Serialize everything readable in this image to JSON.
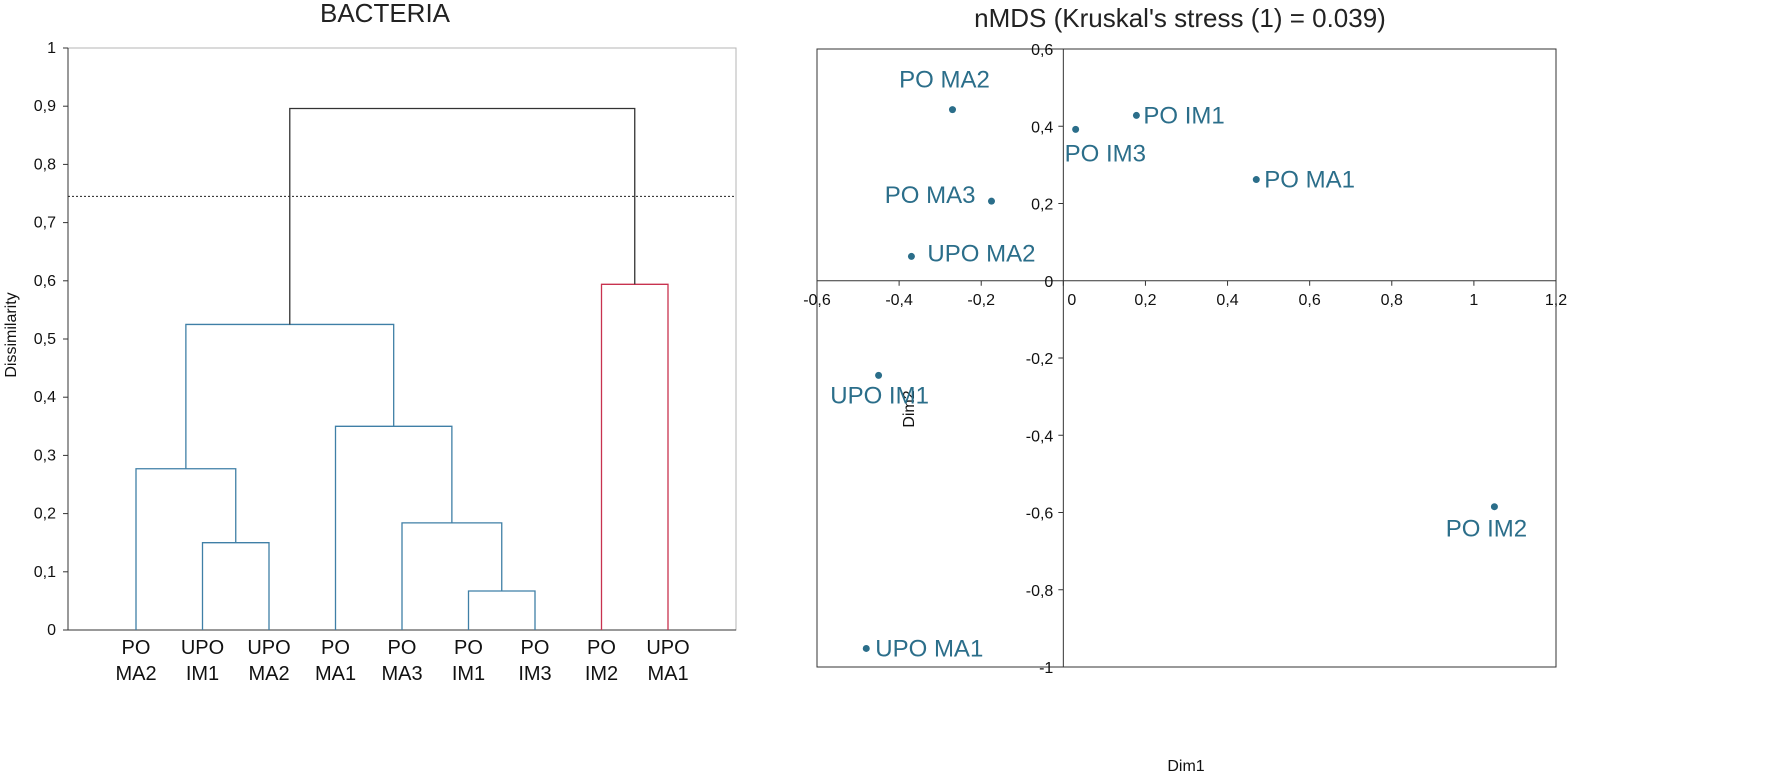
{
  "chart_data": [
    {
      "type": "dendrogram",
      "title": "BACTERIA",
      "ylabel": "Dissimilarity",
      "ylim": [
        0,
        1
      ],
      "yticks": [
        "0",
        "0,1",
        "0,2",
        "0,3",
        "0,4",
        "0,5",
        "0,6",
        "0,7",
        "0,8",
        "0,9",
        "1"
      ],
      "cut_line": 0.745,
      "leaves": [
        {
          "line1": "PO",
          "line2": "MA2"
        },
        {
          "line1": "UPO",
          "line2": "IM1"
        },
        {
          "line1": "UPO",
          "line2": "MA2"
        },
        {
          "line1": "PO",
          "line2": "MA1"
        },
        {
          "line1": "PO",
          "line2": "MA3"
        },
        {
          "line1": "PO",
          "line2": "IM1"
        },
        {
          "line1": "PO",
          "line2": "IM3"
        },
        {
          "line1": "PO",
          "line2": "IM2"
        },
        {
          "line1": "UPO",
          "line2": "MA1"
        }
      ],
      "merges": [
        {
          "left": 5,
          "right": 6,
          "height": 0.067,
          "color": "#3f7fa6"
        },
        {
          "left": 1,
          "right": 2,
          "height": 0.15,
          "color": "#3f7fa6"
        },
        {
          "left": 4,
          "right": "m0",
          "height": 0.184,
          "color": "#3f7fa6"
        },
        {
          "left": 0,
          "right": "m1",
          "height": 0.277,
          "color": "#3f7fa6"
        },
        {
          "left": 3,
          "right": "m2",
          "height": 0.35,
          "color": "#3f7fa6"
        },
        {
          "left": "m3",
          "right": "m4",
          "height": 0.525,
          "color": "#3f7fa6"
        },
        {
          "left": 7,
          "right": 8,
          "height": 0.594,
          "color": "#c8324f"
        },
        {
          "left": "m5",
          "right": "m6",
          "height": 0.896,
          "color": "#333333"
        }
      ]
    },
    {
      "type": "scatter",
      "title": "nMDS (Kruskal's stress (1) = 0.039)",
      "xlabel": "Dim1",
      "ylabel": "Dim2",
      "xlim": [
        -0.6,
        1.2
      ],
      "ylim": [
        -1,
        0.6
      ],
      "xticks": [
        {
          "v": -0.6,
          "t": "-0,6"
        },
        {
          "v": -0.4,
          "t": "-0,4"
        },
        {
          "v": -0.2,
          "t": "-0,2"
        },
        {
          "v": 0,
          "t": "0"
        },
        {
          "v": 0.2,
          "t": "0,2"
        },
        {
          "v": 0.4,
          "t": "0,4"
        },
        {
          "v": 0.6,
          "t": "0,6"
        },
        {
          "v": 0.8,
          "t": "0,8"
        },
        {
          "v": 1,
          "t": "1"
        },
        {
          "v": 1.2,
          "t": "1,2"
        }
      ],
      "yticks": [
        {
          "v": -1,
          "t": "-1"
        },
        {
          "v": -0.8,
          "t": "-0,8"
        },
        {
          "v": -0.6,
          "t": "-0,6"
        },
        {
          "v": -0.4,
          "t": "-0,4"
        },
        {
          "v": -0.2,
          "t": "-0,2"
        },
        {
          "v": 0,
          "t": "0"
        },
        {
          "v": 0.2,
          "t": "0,2"
        },
        {
          "v": 0.4,
          "t": "0,4"
        },
        {
          "v": 0.6,
          "t": "0,6"
        }
      ],
      "point_color": "#2b6e8a",
      "points": [
        {
          "label": "PO MA2",
          "x": -0.27,
          "y": 0.443
        },
        {
          "label": "PO IM1",
          "x": 0.178,
          "y": 0.428
        },
        {
          "label": "PO IM3",
          "x": 0.03,
          "y": 0.392
        },
        {
          "label": "PO MA1",
          "x": 0.47,
          "y": 0.262
        },
        {
          "label": "PO MA3",
          "x": -0.175,
          "y": 0.206
        },
        {
          "label": "UPO MA2",
          "x": -0.37,
          "y": 0.063
        },
        {
          "label": "UPO IM1",
          "x": -0.45,
          "y": -0.245
        },
        {
          "label": "PO IM2",
          "x": 1.05,
          "y": -0.585
        },
        {
          "label": "UPO MA1",
          "x": -0.48,
          "y": -0.952
        }
      ]
    }
  ]
}
